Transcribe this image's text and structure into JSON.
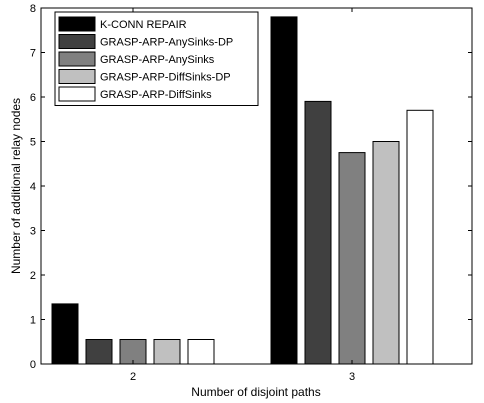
{
  "chart_data": {
    "type": "bar",
    "title": "",
    "xlabel": "Number of disjoint paths",
    "ylabel": "Number of additional relay nodes",
    "categories": [
      "2",
      "3"
    ],
    "ylim": [
      0,
      8
    ],
    "yticks": [
      "0",
      "1",
      "2",
      "3",
      "4",
      "5",
      "6",
      "7",
      "8"
    ],
    "grid": false,
    "legend_position": "top-left",
    "series": [
      {
        "name": "K-CONN REPAIR",
        "values": [
          1.35,
          7.8
        ],
        "color": "#000000"
      },
      {
        "name": "GRASP-ARP-AnySinks-DP",
        "values": [
          0.55,
          5.9
        ],
        "color": "#404040"
      },
      {
        "name": "GRASP-ARP-AnySinks",
        "values": [
          0.55,
          4.75
        ],
        "color": "#808080"
      },
      {
        "name": "GRASP-ARP-DiffSinks-DP",
        "values": [
          0.55,
          5.0
        ],
        "color": "#c0c0c0"
      },
      {
        "name": "GRASP-ARP-DiffSinks",
        "values": [
          0.55,
          5.7
        ],
        "color": "#ffffff"
      }
    ]
  }
}
